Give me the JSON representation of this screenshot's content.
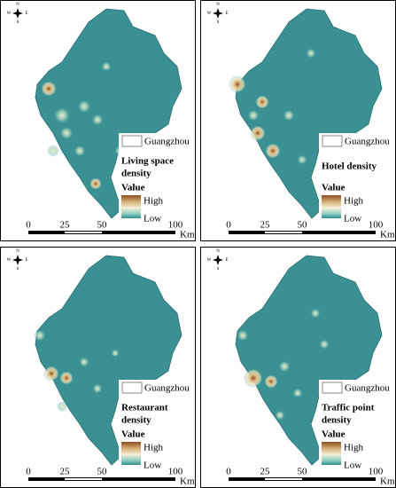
{
  "panels": [
    {
      "title_lines": [
        "Living space",
        "density"
      ]
    },
    {
      "title_lines": [
        "Hotel density"
      ]
    },
    {
      "title_lines": [
        "Restaurant",
        "density"
      ]
    },
    {
      "title_lines": [
        "Traffic point",
        "density"
      ]
    }
  ],
  "compass": {
    "n": "N",
    "s": "S",
    "w": "W",
    "e": "E"
  },
  "legend": {
    "boundary": "Guangzhou",
    "value": "Value",
    "high": "High",
    "low": "Low"
  },
  "scale_bar": {
    "labels": [
      "0",
      "25",
      "50",
      "100"
    ],
    "unit": "Km"
  }
}
